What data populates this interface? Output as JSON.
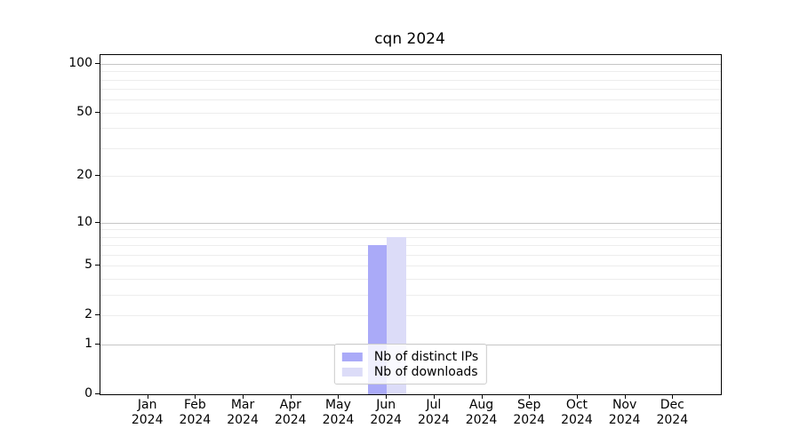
{
  "chart_data": {
    "type": "bar",
    "title": "cqn 2024",
    "xlabel": "",
    "ylabel": "",
    "x_tick_year": "2024",
    "categories": [
      "Jan",
      "Feb",
      "Mar",
      "Apr",
      "May",
      "Jun",
      "Jul",
      "Aug",
      "Sep",
      "Oct",
      "Nov",
      "Dec"
    ],
    "series": [
      {
        "name": "Nb of distinct IPs",
        "color": "#aaaaf8",
        "values": [
          0,
          0,
          0,
          0,
          0,
          7,
          0,
          0,
          0,
          0,
          0,
          0
        ]
      },
      {
        "name": "Nb of downloads",
        "color": "#dcdcf8",
        "values": [
          0,
          0,
          0,
          0,
          0,
          8,
          0,
          0,
          0,
          0,
          0,
          0
        ]
      }
    ],
    "yscale": "log1p",
    "ylim": [
      0,
      113
    ],
    "y_tick_labels": [
      0,
      1,
      2,
      5,
      10,
      20,
      50,
      100
    ],
    "y_major_gridlines": [
      1,
      10,
      100
    ],
    "y_minor_gridlines": [
      2,
      3,
      4,
      5,
      6,
      7,
      8,
      9,
      20,
      30,
      40,
      50,
      60,
      70,
      80,
      90
    ],
    "grid": true,
    "legend_position": "lower center"
  }
}
